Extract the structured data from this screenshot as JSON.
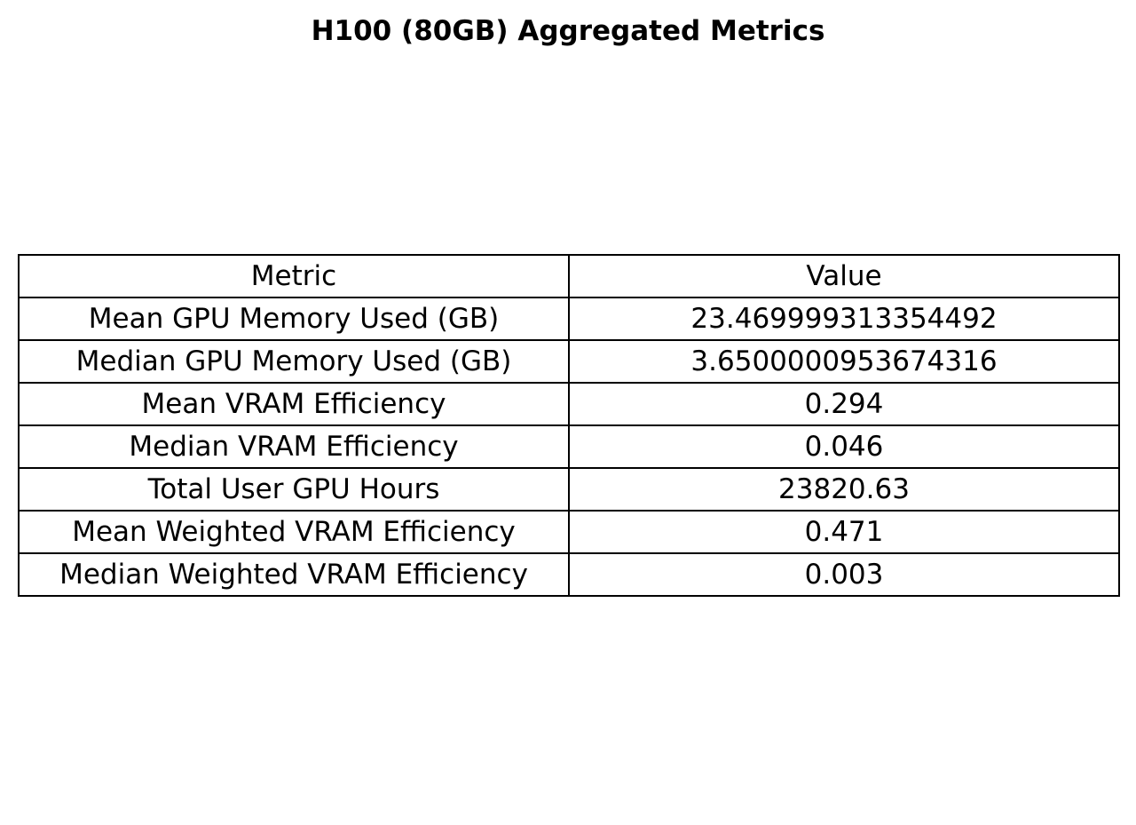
{
  "chart_data": {
    "type": "table",
    "title": "H100 (80GB) Aggregated Metrics",
    "columns": [
      "Metric",
      "Value"
    ],
    "rows": [
      [
        "Mean GPU Memory Used (GB)",
        "23.469999313354492"
      ],
      [
        "Median GPU Memory Used (GB)",
        "3.6500000953674316"
      ],
      [
        "Mean VRAM Efficiency",
        "0.294"
      ],
      [
        "Median VRAM Efficiency",
        "0.046"
      ],
      [
        "Total User GPU Hours",
        "23820.63"
      ],
      [
        "Mean Weighted VRAM Efficiency",
        "0.471"
      ],
      [
        "Median Weighted VRAM Efficiency",
        "0.003"
      ]
    ]
  }
}
